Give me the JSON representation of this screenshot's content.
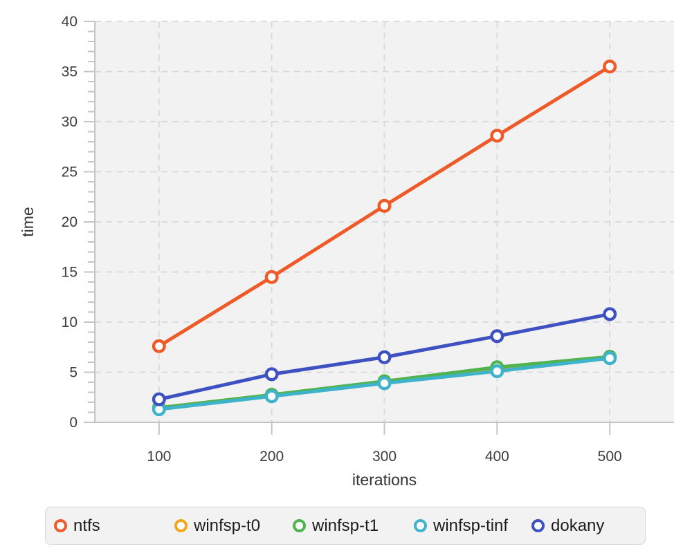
{
  "page": {
    "background": "#ffffff"
  },
  "chart_data": {
    "type": "line",
    "title": "",
    "xlabel": "iterations",
    "ylabel": "time",
    "x": [
      100,
      200,
      300,
      400,
      500
    ],
    "series": [
      {
        "name": "ntfs",
        "color": "#ef5b28",
        "values": [
          7.6,
          14.5,
          21.6,
          28.6,
          35.5
        ]
      },
      {
        "name": "winfsp-t0",
        "color": "#f2a71e",
        "values": [
          1.45,
          2.75,
          4.05,
          5.3,
          6.45
        ]
      },
      {
        "name": "winfsp-t1",
        "color": "#4fb350",
        "values": [
          1.45,
          2.75,
          4.1,
          5.5,
          6.55
        ]
      },
      {
        "name": "winfsp-tinf",
        "color": "#3eb3cb",
        "values": [
          1.3,
          2.6,
          3.9,
          5.1,
          6.4
        ]
      },
      {
        "name": "dokany",
        "color": "#3e51c1",
        "values": [
          2.3,
          4.8,
          6.5,
          8.6,
          10.8
        ]
      }
    ],
    "draw_order": [
      1,
      2,
      3,
      4,
      0
    ],
    "x_ticks": [
      100,
      200,
      300,
      400,
      500
    ],
    "y_ticks": [
      0,
      5,
      10,
      15,
      20,
      25,
      30,
      35,
      40
    ],
    "y_minor_tick_step": 1,
    "xlim": [
      43,
      557
    ],
    "ylim": [
      0,
      40
    ],
    "grid": "dashed-major",
    "marker": "open-circle",
    "legend_position": "bottom"
  },
  "style": {
    "plot_bg": "#f2f2f2",
    "grid_color": "#d8d8d8",
    "axis_color": "#c4c4c4",
    "tick_label_color": "#3d3d3d",
    "axis_label_color": "#333333",
    "legend_bg": "#f2f2f2",
    "legend_border": "#d6d6d6",
    "legend_text_color": "#1d1d1f"
  }
}
